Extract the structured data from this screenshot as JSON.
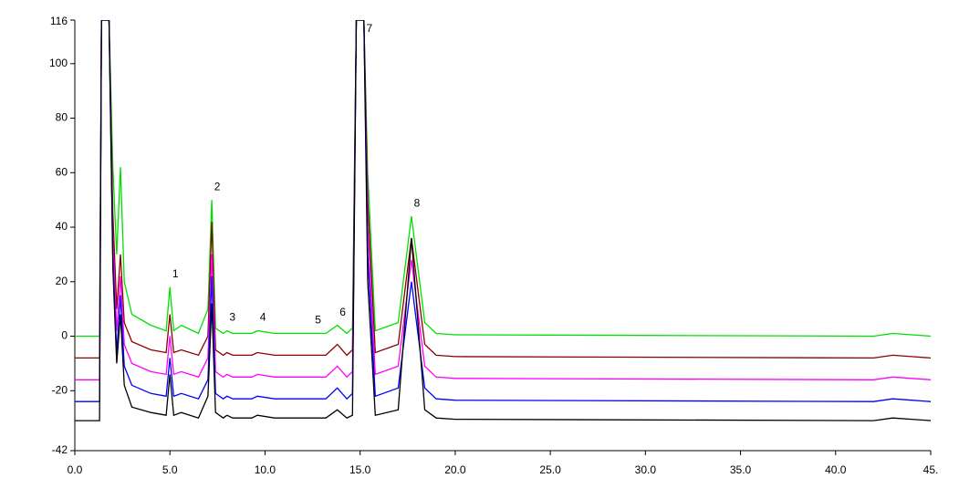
{
  "chart_data": {
    "type": "line",
    "x": [
      0,
      1.3,
      1.4,
      1.6,
      1.8,
      2.0,
      2.2,
      2.4,
      2.6,
      3.0,
      4.0,
      4.8,
      5.0,
      5.2,
      5.6,
      6.5,
      7.0,
      7.2,
      7.4,
      7.8,
      8.0,
      8.3,
      9.3,
      9.6,
      10.5,
      13.2,
      13.8,
      14.3,
      14.6,
      14.8,
      15.0,
      15.2,
      15.4,
      15.8,
      17.0,
      17.7,
      18.4,
      19.0,
      20.0,
      42.0,
      43.0,
      44.0,
      45.0
    ],
    "series": [
      {
        "color": "#00e000",
        "values": [
          0,
          0,
          116,
          116,
          116,
          62,
          30,
          62,
          20,
          8,
          4,
          2,
          18,
          2,
          4,
          1,
          10,
          50,
          3,
          1,
          2,
          1,
          1,
          2,
          1,
          1,
          4,
          1,
          3,
          116,
          116,
          116,
          60,
          2,
          5,
          44,
          5,
          1,
          0.5,
          0,
          1,
          0.5,
          0
        ]
      },
      {
        "color": "#8b0000",
        "values": [
          -8,
          -8,
          116,
          116,
          116,
          45,
          10,
          30,
          5,
          -2,
          -5,
          -6,
          8,
          -6,
          -5,
          -7,
          0,
          42,
          -5,
          -7,
          -6,
          -7,
          -7,
          -6,
          -7,
          -7,
          -3,
          -7,
          -5,
          116,
          116,
          116,
          50,
          -6,
          -3,
          36,
          -3,
          -7,
          -7.5,
          -8,
          -7,
          -7.5,
          -8
        ]
      },
      {
        "color": "#ff00ff",
        "values": [
          -16,
          -16,
          116,
          116,
          116,
          35,
          2,
          22,
          -3,
          -10,
          -13,
          -14,
          0,
          -14,
          -13,
          -15,
          -8,
          30,
          -13,
          -15,
          -14,
          -15,
          -15,
          -14,
          -15,
          -15,
          -11,
          -15,
          -13,
          116,
          116,
          116,
          40,
          -14,
          -11,
          28,
          -11,
          -15,
          -15.5,
          -16,
          -15,
          -15.5,
          -16
        ]
      },
      {
        "color": "#0000ff",
        "values": [
          -24,
          -24,
          116,
          116,
          116,
          28,
          -6,
          15,
          -11,
          -18,
          -21,
          -22,
          -8,
          -22,
          -21,
          -23,
          -16,
          22,
          -21,
          -23,
          -22,
          -23,
          -23,
          -22,
          -23,
          -23,
          -19,
          -23,
          -21,
          116,
          116,
          116,
          30,
          -22,
          -19,
          20,
          -19,
          -23,
          -23.5,
          -24,
          -23,
          -23.5,
          -24
        ]
      },
      {
        "color": "#000000",
        "values": [
          -31,
          -31,
          116,
          116,
          116,
          25,
          -10,
          8,
          -18,
          -26,
          -28,
          -29,
          -14,
          -29,
          -28,
          -30,
          -22,
          12,
          -28,
          -30,
          -29,
          -30,
          -30,
          -29,
          -30,
          -30,
          -27,
          -30,
          -29,
          116,
          116,
          116,
          20,
          -29,
          -27,
          36,
          -27,
          -30,
          -30.5,
          -31,
          -30,
          -30.5,
          -31
        ]
      }
    ],
    "peaks": [
      {
        "label": "1",
        "x": 5.0
      },
      {
        "label": "2",
        "x": 7.2
      },
      {
        "label": "3",
        "x": 8.0
      },
      {
        "label": "4",
        "x": 9.6
      },
      {
        "label": "5",
        "x": 12.5
      },
      {
        "label": "6",
        "x": 13.8
      },
      {
        "label": "7",
        "x": 15.2
      },
      {
        "label": "8",
        "x": 17.7
      }
    ],
    "xlim": [
      0,
      45
    ],
    "xticks": [
      {
        "value": 0,
        "label": "0.0"
      },
      {
        "value": 5,
        "label": "5.0"
      },
      {
        "value": 10,
        "label": "10.0"
      },
      {
        "value": 15,
        "label": "15.0"
      },
      {
        "value": 20,
        "label": "20.0"
      },
      {
        "value": 25,
        "label": "25.0"
      },
      {
        "value": 30,
        "label": "30.0"
      },
      {
        "value": 35,
        "label": "35.0"
      },
      {
        "value": 40,
        "label": "40.0"
      },
      {
        "value": 45,
        "label": "45."
      }
    ],
    "ylim": [
      -42,
      116
    ],
    "yticks": [
      -42,
      -20,
      0,
      20,
      40,
      60,
      80,
      100,
      116
    ]
  }
}
